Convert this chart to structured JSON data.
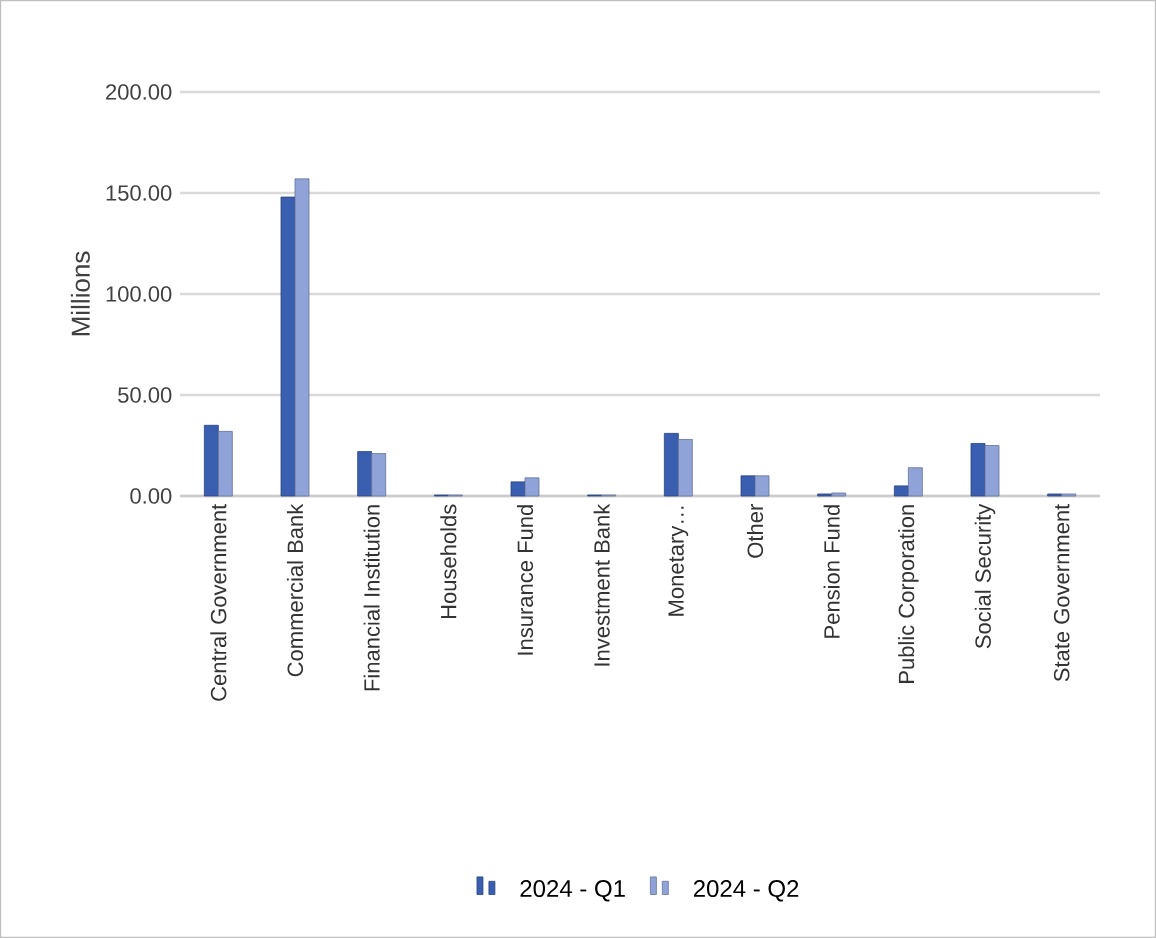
{
  "chart_data": {
    "type": "bar",
    "ylabel": "Millions",
    "categories": [
      "Central Government",
      "Commercial Bank",
      "Financial Institution",
      "Households",
      "Insurance Fund",
      "Investment Bank",
      "Monetary…",
      "Other",
      "Pension Fund",
      "Public Corporation",
      "Social Security",
      "State Government"
    ],
    "series": [
      {
        "name": "2024 - Q1",
        "color": "#3a5fb0",
        "values": [
          35,
          148,
          22,
          0.5,
          7,
          0.5,
          31,
          10,
          1,
          5,
          26,
          1
        ]
      },
      {
        "name": "2024 - Q2",
        "color": "#8fa3d8",
        "values": [
          32,
          157,
          21,
          0.5,
          9,
          0.5,
          28,
          10,
          1.5,
          14,
          25,
          1
        ]
      }
    ],
    "ylim": [
      0,
      200
    ],
    "yticks": [
      {
        "value": 0,
        "label": "0.00"
      },
      {
        "value": 50,
        "label": "50.00"
      },
      {
        "value": 100,
        "label": "100.00"
      },
      {
        "value": 150,
        "label": "150.00"
      },
      {
        "value": 200,
        "label": "200.00"
      }
    ],
    "grid": "y",
    "legend": "bottom"
  }
}
